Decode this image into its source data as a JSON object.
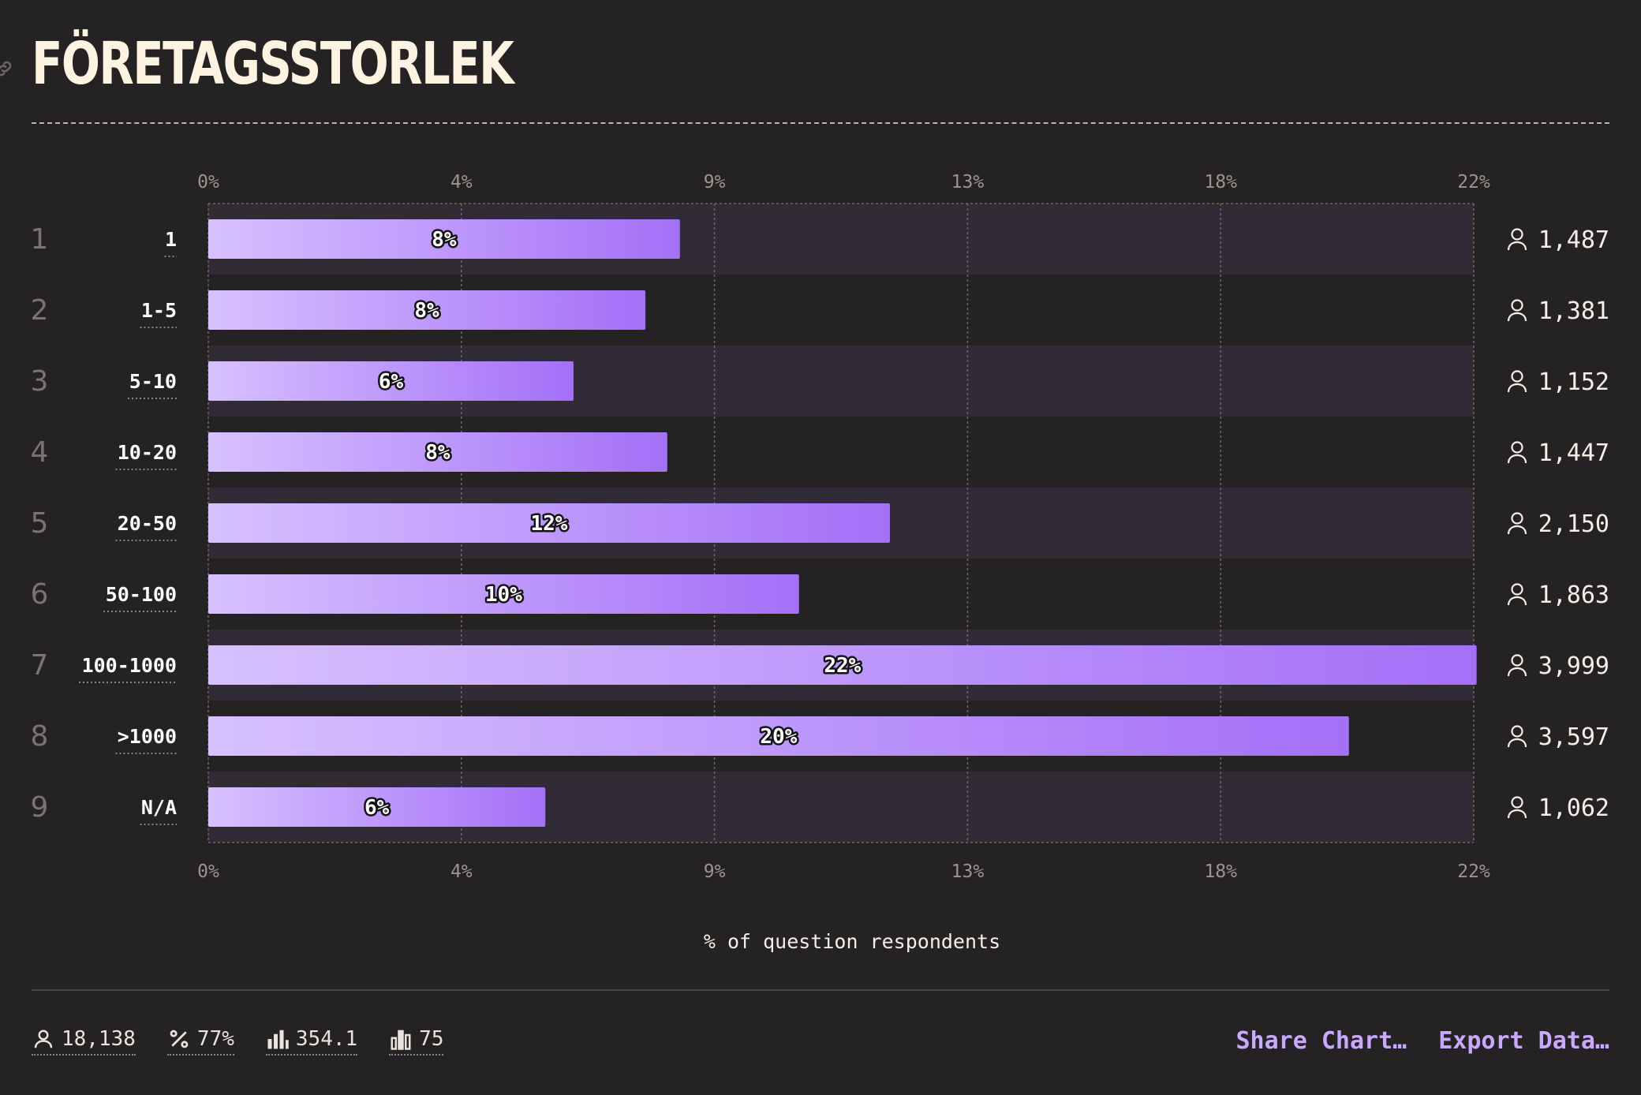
{
  "title": "FÖRETAGSSTORLEK",
  "chart_data": {
    "type": "bar",
    "orientation": "horizontal",
    "title": "FÖRETAGSSTORLEK",
    "xlabel": "% of question respondents",
    "xlim": [
      0,
      22
    ],
    "ticks": [
      "0%",
      "4%",
      "9%",
      "13%",
      "18%",
      "22%"
    ],
    "categories": [
      "1",
      "1-5",
      "5-10",
      "10-20",
      "20-50",
      "50-100",
      "100-1000",
      ">1000",
      "N/A"
    ],
    "ranks": [
      "1",
      "2",
      "3",
      "4",
      "5",
      "6",
      "7",
      "8",
      "9"
    ],
    "values": [
      8.2,
      7.6,
      6.35,
      7.98,
      11.85,
      10.27,
      22.05,
      19.83,
      5.86
    ],
    "value_labels": [
      "8%",
      "8%",
      "6%",
      "8%",
      "12%",
      "10%",
      "22%",
      "20%",
      "6%"
    ],
    "counts": [
      "1,487",
      "1,381",
      "1,152",
      "1,447",
      "2,150",
      "1,863",
      "3,999",
      "3,597",
      "1,062"
    ],
    "grid": true,
    "colors": {
      "bar_start": "#d7c1ff",
      "bar_end": "#a470f7",
      "band": "#302b35"
    }
  },
  "footer": {
    "stats": {
      "respondents": "18,138",
      "percent": "77%",
      "stat3": "354.1",
      "stat4": "75"
    },
    "actions": {
      "share": "Share Chart…",
      "export": "Export Data…"
    }
  }
}
